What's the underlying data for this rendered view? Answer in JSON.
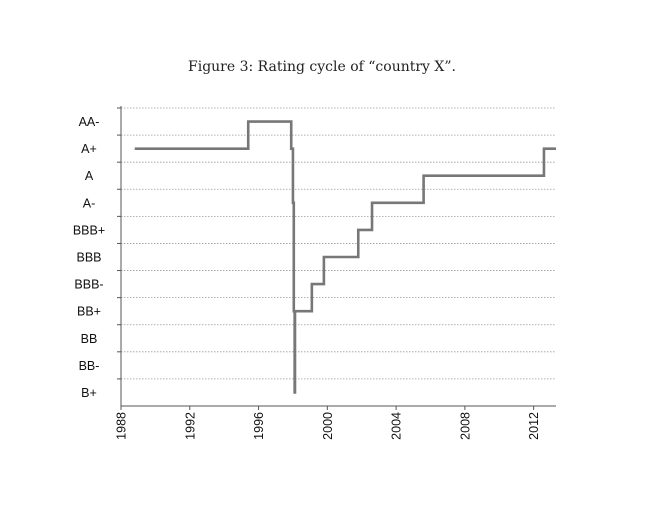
{
  "caption": "Figure 3: Rating cycle of “country X”.",
  "chart_data": {
    "type": "line",
    "title": "Figure 3: Rating cycle of “country X”.",
    "xlabel": "",
    "ylabel": "",
    "xlim": [
      1988,
      2013.3
    ],
    "x_ticks": [
      1988,
      1992,
      1996,
      2000,
      2004,
      2008,
      2012
    ],
    "x_tick_labels": [
      "1988",
      "1992",
      "1996",
      "2000",
      "2004",
      "2008",
      "2012"
    ],
    "y_categories": [
      "B+",
      "BB-",
      "BB",
      "BB+",
      "BBB-",
      "BBB",
      "BBB+",
      "A-",
      "A",
      "A+",
      "AA-"
    ],
    "grid": true,
    "step_style": "post",
    "series": [
      {
        "name": "",
        "color": "#777777",
        "points": [
          {
            "x": 1988.8,
            "y": "A+"
          },
          {
            "x": 1995.4,
            "y": "AA-"
          },
          {
            "x": 1997.9,
            "y": "A+"
          },
          {
            "x": 1998.0,
            "y": "A-"
          },
          {
            "x": 1998.05,
            "y": "BB+"
          },
          {
            "x": 1998.1,
            "y": "B+"
          },
          {
            "x": 1998.12,
            "y": "BB+"
          },
          {
            "x": 1999.1,
            "y": "BBB-"
          },
          {
            "x": 1999.8,
            "y": "BBB"
          },
          {
            "x": 2001.8,
            "y": "BBB+"
          },
          {
            "x": 2002.6,
            "y": "A-"
          },
          {
            "x": 2005.6,
            "y": "A"
          },
          {
            "x": 2012.6,
            "y": "A+"
          },
          {
            "x": 2013.3,
            "y": "A+"
          }
        ]
      }
    ]
  }
}
